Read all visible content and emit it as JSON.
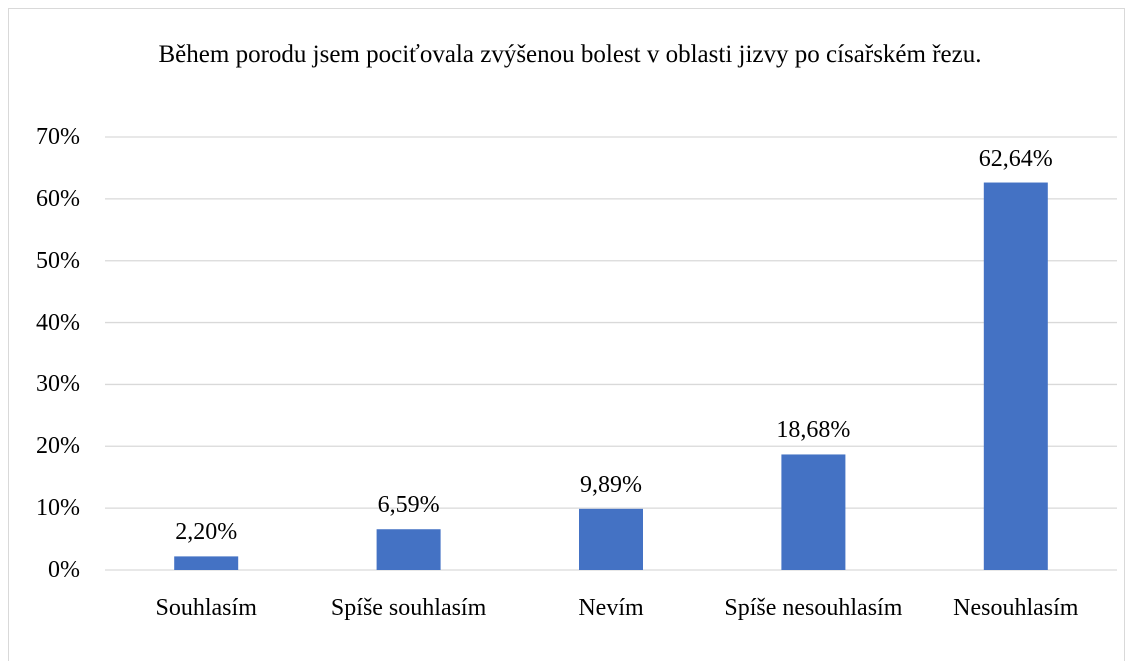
{
  "chart_data": {
    "type": "bar",
    "title": "Během porodu jsem pociťovala zvýšenou bolest v oblasti jizvy po císařském řezu.",
    "categories": [
      "Souhlasím",
      "Spíše souhlasím",
      "Nevím",
      "Spíše nesouhlasím",
      "Nesouhlasím"
    ],
    "values": [
      2.2,
      6.59,
      9.89,
      18.68,
      62.64
    ],
    "value_labels": [
      "2,20%",
      "6,59%",
      "9,89%",
      "18,68%",
      "62,64%"
    ],
    "color": "#4472c4",
    "ylim": [
      0,
      70
    ],
    "yticks": [
      {
        "value": 0,
        "label": "0%"
      },
      {
        "value": 10,
        "label": "10%"
      },
      {
        "value": 20,
        "label": "20%"
      },
      {
        "value": 30,
        "label": "30%"
      },
      {
        "value": 40,
        "label": "40%"
      },
      {
        "value": 50,
        "label": "50%"
      },
      {
        "value": 60,
        "label": "60%"
      },
      {
        "value": 70,
        "label": "70%"
      }
    ],
    "grid": true
  }
}
